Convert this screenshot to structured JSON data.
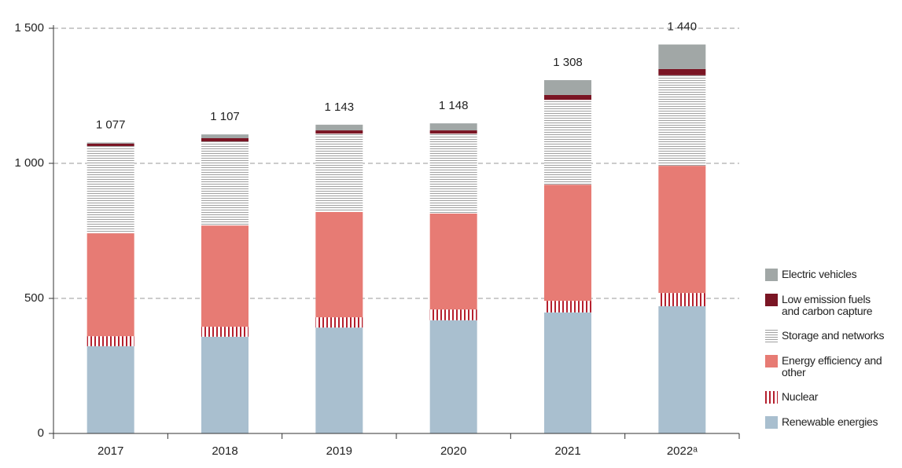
{
  "chart_data": {
    "type": "bar",
    "stacked": true,
    "categories": [
      "2017",
      "2018",
      "2019",
      "2020",
      "2021",
      "2022ᵃ"
    ],
    "series": [
      {
        "name": "Renewable energies",
        "color": "#a9bfcf",
        "values": [
          323,
          358,
          392,
          419,
          448,
          471
        ]
      },
      {
        "name": "Nuclear",
        "color": "#b5202e",
        "pattern": "vertical-stripes",
        "values": [
          37,
          37,
          38,
          40,
          43,
          49
        ]
      },
      {
        "name": "Energy efficiency and other",
        "color": "#e77b74",
        "values": [
          381,
          375,
          390,
          355,
          430,
          471
        ]
      },
      {
        "name": "Storage and networks",
        "color": "#a0a0a0",
        "pattern": "horizontal-stripes",
        "values": [
          323,
          311,
          290,
          296,
          314,
          335
        ]
      },
      {
        "name": "Low emission fuels and carbon capture",
        "color": "#7a1524",
        "values": [
          9,
          12,
          12,
          12,
          18,
          23
        ]
      },
      {
        "name": "Electric vehicles",
        "color": "#a1a7a6",
        "values": [
          4,
          14,
          21,
          26,
          55,
          91
        ]
      }
    ],
    "totals": [
      1077,
      1107,
      1143,
      1148,
      1308,
      1440
    ],
    "total_labels": [
      "1 077",
      "1 107",
      "1 143",
      "1 148",
      "1 308",
      "1 440"
    ],
    "ylim": [
      0,
      1500
    ],
    "yticks": [
      0,
      500,
      {
        "value": 1000,
        "label": "1 000"
      },
      {
        "value": 1500,
        "label": "1 500"
      }
    ],
    "grid": true
  }
}
